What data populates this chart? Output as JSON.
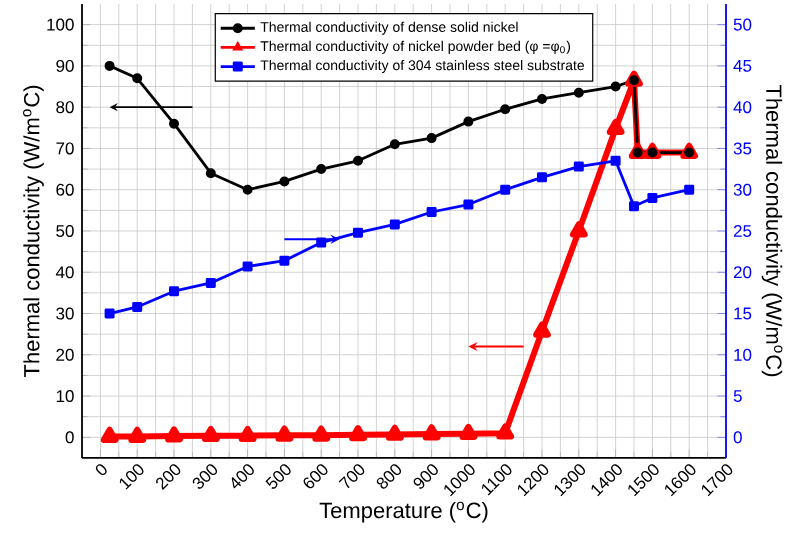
{
  "chart_data": {
    "type": "line",
    "xlabel": "Temperature ($^{o}$C)",
    "ylabel": "Thermal conductivity (W/m$^{o}$C)",
    "y2label": "Thermal conductivity (W/m$^{o}$C)",
    "xlim": [
      -50,
      1700
    ],
    "xticks": [
      0,
      100,
      200,
      300,
      400,
      500,
      600,
      700,
      800,
      900,
      1000,
      1100,
      1200,
      1300,
      1400,
      1500,
      1600,
      1700
    ],
    "ylim": [
      -5,
      105
    ],
    "yticks": [
      0,
      10,
      20,
      30,
      40,
      50,
      60,
      70,
      80,
      90,
      100
    ],
    "y2lim": [
      -2.5,
      52.5
    ],
    "y2ticks": [
      0,
      5,
      10,
      15,
      20,
      25,
      30,
      35,
      40,
      45,
      50
    ],
    "grid": true,
    "legend": "top",
    "line_style": "solid",
    "series": [
      {
        "name": "Thermal conductivity of dense solid nickel",
        "color": "#000000",
        "marker": "circle",
        "x": [
          25,
          100,
          200,
          300,
          400,
          500,
          600,
          700,
          800,
          900,
          1000,
          1100,
          1200,
          1300,
          1400,
          1450,
          1460,
          1500,
          1600
        ],
        "values": [
          90,
          87,
          76,
          64,
          60,
          62,
          65,
          67,
          71,
          72.5,
          76.5,
          79.5,
          82,
          83.5,
          85,
          86.5,
          69,
          69,
          69
        ]
      },
      {
        "name": "Thermal conductivity of nickel powder bed (φ =φ$_{0}$)",
        "color": "#ff0000",
        "marker": "triangle",
        "x": [
          25,
          100,
          200,
          300,
          400,
          500,
          600,
          700,
          800,
          900,
          1000,
          1100,
          1200,
          1300,
          1400,
          1450,
          1460,
          1500,
          1600
        ],
        "values": [
          0.2,
          0.2,
          0.3,
          0.4,
          0.4,
          0.5,
          0.5,
          0.6,
          0.7,
          0.8,
          0.9,
          1,
          25.7,
          50,
          74.8,
          86.5,
          69,
          69,
          69
        ]
      },
      {
        "name": "Thermal conductivity of 304 stainless steel substrate",
        "color": "#0000ff",
        "marker": "square",
        "axis": "y2",
        "x": [
          25,
          100,
          200,
          300,
          400,
          500,
          600,
          700,
          800,
          900,
          1000,
          1100,
          1200,
          1300,
          1400,
          1450,
          1500,
          1600
        ],
        "values": [
          15,
          15.8,
          17.7,
          18.7,
          20.7,
          21.4,
          23.6,
          24.8,
          25.8,
          27.3,
          28.2,
          30,
          31.5,
          32.8,
          33.5,
          28,
          29,
          30
        ]
      }
    ]
  }
}
